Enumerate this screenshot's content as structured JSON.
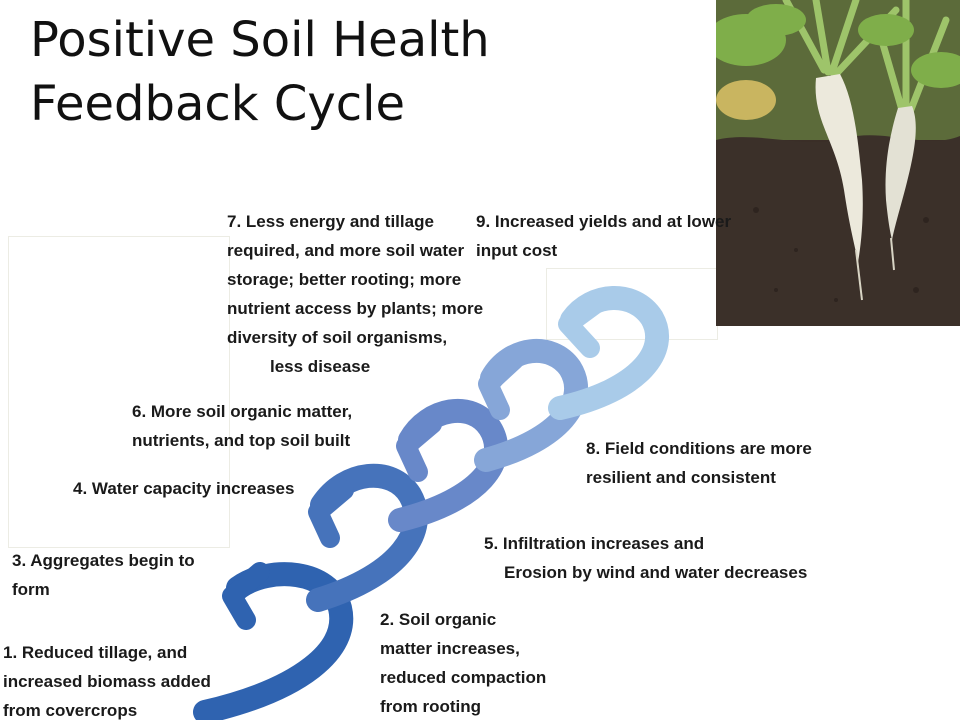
{
  "title": {
    "line1": "Positive Soil Health",
    "line2": "Feedback Cycle"
  },
  "steps": [
    {
      "id": 1,
      "lines": [
        "1. Reduced tillage,  and",
        "increased biomass added",
        "from covercrops"
      ]
    },
    {
      "id": 2,
      "lines": [
        "2. Soil organic",
        "matter increases,",
        "reduced compaction",
        "from rooting"
      ]
    },
    {
      "id": 3,
      "lines": [
        "3. Aggregates begin to",
        "form"
      ]
    },
    {
      "id": 4,
      "lines": [
        "4. Water capacity increases"
      ]
    },
    {
      "id": 5,
      "lines": [
        "5. Infiltration increases and",
        "Erosion by wind and water decreases"
      ]
    },
    {
      "id": 6,
      "lines": [
        "6. More soil organic matter,",
        "nutrients, and top soil built"
      ]
    },
    {
      "id": 7,
      "lines": [
        "7. Less energy and tillage",
        "required, and more soil water",
        "storage; better rooting; more",
        "nutrient access by plants; more",
        "diversity of soil organisms,",
        "less disease"
      ]
    },
    {
      "id": 8,
      "lines": [
        "8. Field conditions are more",
        "resilient and consistent"
      ]
    },
    {
      "id": 9,
      "lines": [
        "9. Increased yields and at lower",
        "input cost"
      ]
    }
  ],
  "colors": {
    "arrow_dark": "#2f63b0",
    "arrow_light": "#a9cbe9",
    "soil": "#3a2e27",
    "leaf": "#7fae4a"
  },
  "photo": {
    "subject": "radish-roots-in-soil"
  }
}
